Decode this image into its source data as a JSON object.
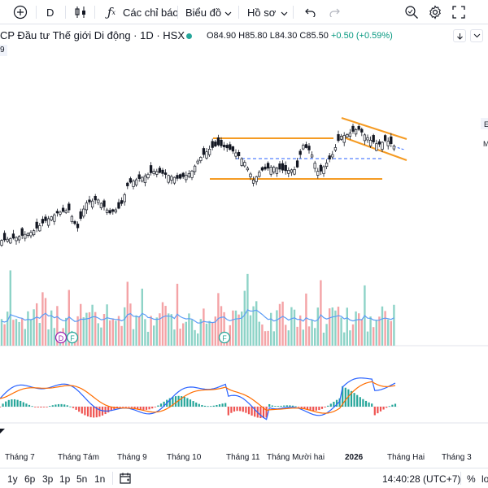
{
  "toolbar": {
    "interval": "D",
    "indicators_label": "Các chỉ báo",
    "chart_type_label": "Biểu đồ",
    "layout_label": "Hồ sơ"
  },
  "symbol": {
    "title": "CP Đầu tư Thế giới Di động · 1D · HSX",
    "open": "O84.90",
    "high": "H85.80",
    "low": "L84.30",
    "close": "C85.50",
    "change": "+0.50 (+0.59%)",
    "sub_value": "9"
  },
  "right_edge_labels": {
    "label1": "E",
    "label2": "M"
  },
  "markers": {
    "dividend": "D",
    "financial_1": "F",
    "financial_2": "F"
  },
  "xaxis": {
    "labels": [
      "Tháng 7",
      "Tháng Tám",
      "Tháng 9",
      "Tháng 10",
      "Tháng 11",
      "Tháng Mười hai",
      "2026",
      "Tháng Hai",
      "Tháng 3"
    ]
  },
  "bottom": {
    "ranges": [
      "1y",
      "6p",
      "3p",
      "1p",
      "5n",
      "1n"
    ],
    "clock": "14:40:28 (UTC+7)",
    "percent": "%",
    "log": "lo"
  },
  "colors": {
    "up": "#26a69a",
    "down": "#ef5350",
    "orange": "#f59b23",
    "blue_ma": "#2962ff",
    "text": "#131722"
  }
}
